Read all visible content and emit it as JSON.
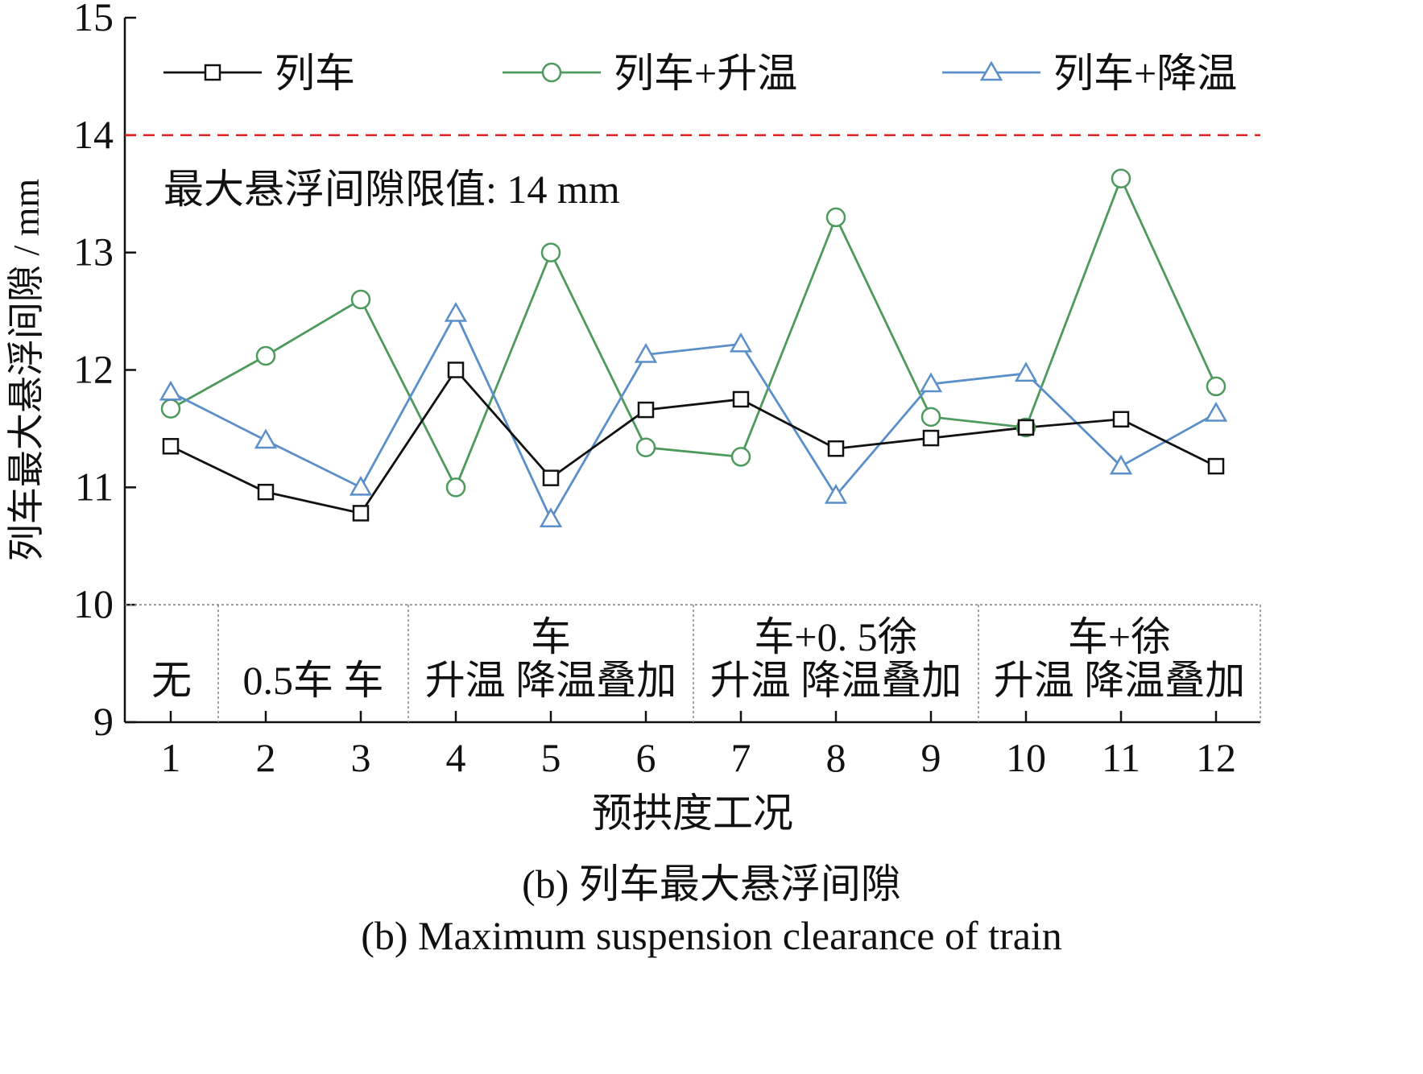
{
  "chart_data": {
    "type": "line",
    "ylabel": "列车最大悬浮间隙 / mm",
    "xlabel": "预拱度工况",
    "ylim": [
      9,
      15
    ],
    "yticks": [
      "9",
      "10",
      "11",
      "12",
      "13",
      "14",
      "15"
    ],
    "x": [
      1,
      2,
      3,
      4,
      5,
      6,
      7,
      8,
      9,
      10,
      11,
      12
    ],
    "xticks": [
      "1",
      "2",
      "3",
      "4",
      "5",
      "6",
      "7",
      "8",
      "9",
      "10",
      "11",
      "12"
    ],
    "series": [
      {
        "name": "列车",
        "color": "#111111",
        "marker": "square",
        "values": [
          11.35,
          10.96,
          10.78,
          12.0,
          11.08,
          11.66,
          11.75,
          11.33,
          11.42,
          11.51,
          11.58,
          11.18
        ]
      },
      {
        "name": "列车+升温",
        "color": "#4e9a5c",
        "marker": "circle",
        "values": [
          11.67,
          12.12,
          12.6,
          11.0,
          13.0,
          11.34,
          11.26,
          13.3,
          11.6,
          11.51,
          13.63,
          11.86
        ]
      },
      {
        "name": "列车+降温",
        "color": "#5b8fc9",
        "marker": "triangle",
        "values": [
          11.81,
          11.4,
          11.0,
          12.48,
          10.73,
          12.13,
          12.22,
          10.93,
          11.88,
          11.97,
          11.18,
          11.63
        ]
      }
    ],
    "reference_line": {
      "value": 14,
      "color": "#e02020",
      "label": "最大悬浮间隙限值: 14 mm"
    },
    "legend": "top",
    "condition_table": {
      "groups": [
        {
          "top": "",
          "bottom": "无",
          "from": 1,
          "to": 1
        },
        {
          "top": "",
          "bottom": "0.5车  车",
          "from": 2,
          "to": 3
        },
        {
          "top": "车",
          "bottom": "升温 降温叠加",
          "from": 4,
          "to": 6
        },
        {
          "top": "车+0. 5徐",
          "bottom": "升温 降温叠加",
          "from": 7,
          "to": 9
        },
        {
          "top": "车+徐",
          "bottom": "升温 降温叠加",
          "from": 10,
          "to": 12
        }
      ]
    }
  },
  "caption": {
    "zh": "(b) 列车最大悬浮间隙",
    "en": "(b) Maximum suspension clearance of train"
  }
}
